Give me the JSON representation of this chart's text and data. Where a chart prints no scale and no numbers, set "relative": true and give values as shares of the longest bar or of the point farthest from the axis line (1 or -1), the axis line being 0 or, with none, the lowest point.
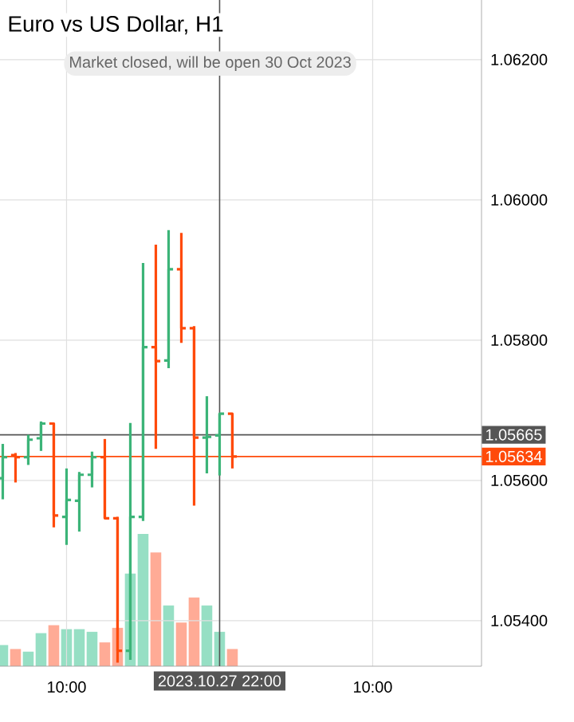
{
  "chart_data": [
    {
      "type": "candlestick",
      "title": "Euro vs US Dollar, H1",
      "annotations": [
        "Market closed, will be open 30 Oct 2023"
      ],
      "x": [
        "2023-10-27T05:00",
        "2023-10-27T06:00",
        "2023-10-27T07:00",
        "2023-10-27T08:00",
        "2023-10-27T09:00",
        "2023-10-27T10:00",
        "2023-10-27T11:00",
        "2023-10-27T12:00",
        "2023-10-27T13:00",
        "2023-10-27T14:00",
        "2023-10-27T15:00",
        "2023-10-27T16:00",
        "2023-10-27T17:00",
        "2023-10-27T18:00",
        "2023-10-27T19:00",
        "2023-10-27T20:00",
        "2023-10-27T21:00",
        "2023-10-27T22:00",
        "2023-10-27T23:00"
      ],
      "ohlc": [
        [
          1.05603,
          1.05652,
          1.05573,
          1.05633
        ],
        [
          1.05636,
          1.05639,
          1.05597,
          1.05633
        ],
        [
          1.05633,
          1.05665,
          1.05622,
          1.05658
        ],
        [
          1.0566,
          1.05684,
          1.05642,
          1.05681
        ],
        [
          1.05681,
          1.05682,
          1.05533,
          1.0555
        ],
        [
          1.05548,
          1.05617,
          1.05508,
          1.05572
        ],
        [
          1.05571,
          1.05612,
          1.05527,
          1.05608
        ],
        [
          1.05608,
          1.05641,
          1.0559,
          1.05633
        ],
        [
          1.05633,
          1.05659,
          1.05546,
          1.05546
        ],
        [
          1.05546,
          1.05548,
          1.0534,
          1.05357
        ],
        [
          1.05357,
          1.05682,
          1.05344,
          1.05548
        ],
        [
          1.05548,
          1.0591,
          1.05542,
          1.0579
        ],
        [
          1.0579,
          1.05936,
          1.05645,
          1.0577
        ],
        [
          1.05771,
          1.05957,
          1.0576,
          1.05901
        ],
        [
          1.05901,
          1.05953,
          1.05796,
          1.05817
        ],
        [
          1.05817,
          1.0582,
          1.05564,
          1.05661
        ],
        [
          1.05661,
          1.0572,
          1.0561,
          1.05662
        ],
        [
          1.05664,
          1.05695,
          1.05607,
          1.05695
        ],
        [
          1.05695,
          1.05695,
          1.05617,
          1.05634
        ]
      ],
      "colors": [
        "#3cb478",
        "#ff4a0a",
        "#3cb478",
        "#3cb478",
        "#ff4a0a",
        "#3cb478",
        "#3cb478",
        "#3cb478",
        "#ff4a0a",
        "#ff4a0a",
        "#3cb478",
        "#3cb478",
        "#ff4a0a",
        "#3cb478",
        "#ff4a0a",
        "#ff4a0a",
        "#3cb478",
        "#3cb478",
        "#ff4a0a"
      ],
      "xlim": [
        "2023-10-27T04:47",
        "2023-10-28T18:32"
      ],
      "ylim": [
        1.05335,
        1.06285
      ],
      "xticks": [
        {
          "value": "2023-10-27T10:00",
          "label": "10:00"
        },
        {
          "value": "2023-10-28T10:00",
          "label": "10:00"
        }
      ],
      "yticks": [
        {
          "value": 1.054,
          "label": "1.05400"
        },
        {
          "value": 1.056,
          "label": "1.05600"
        },
        {
          "value": 1.058,
          "label": "1.05800"
        },
        {
          "value": 1.06,
          "label": "1.06000"
        },
        {
          "value": 1.062,
          "label": "1.06200"
        }
      ],
      "ref_lines": [
        {
          "axis": "y",
          "value": 1.05665,
          "label": "1.05665",
          "color": "#555555"
        },
        {
          "axis": "y",
          "value": 1.05634,
          "label": "1.05634",
          "color": "#ff4a0a"
        },
        {
          "axis": "x",
          "value": "2023-10-27T22:00",
          "label": "2023.10.27 22:00",
          "color": "#555555"
        }
      ],
      "grid": true
    },
    {
      "type": "bar",
      "relative": true,
      "x": [
        "2023-10-27T05:00",
        "2023-10-27T06:00",
        "2023-10-27T07:00",
        "2023-10-27T08:00",
        "2023-10-27T09:00",
        "2023-10-27T10:00",
        "2023-10-27T11:00",
        "2023-10-27T12:00",
        "2023-10-27T13:00",
        "2023-10-27T14:00",
        "2023-10-27T15:00",
        "2023-10-27T16:00",
        "2023-10-27T17:00",
        "2023-10-27T18:00",
        "2023-10-27T19:00",
        "2023-10-27T20:00",
        "2023-10-27T21:00",
        "2023-10-27T22:00",
        "2023-10-27T23:00"
      ],
      "xlim": [
        "2023-10-27T04:47",
        "2023-10-28T18:32"
      ],
      "values": [
        0.16,
        0.13,
        0.11,
        0.25,
        0.31,
        0.28,
        0.28,
        0.26,
        0.18,
        0.29,
        0.7,
        1,
        0.86,
        0.46,
        0.33,
        0.52,
        0.46,
        0.26,
        0.13
      ],
      "colors": [
        "#96dfc4",
        "#ffab96",
        "#96dfc4",
        "#96dfc4",
        "#ffab96",
        "#96dfc4",
        "#96dfc4",
        "#96dfc4",
        "#ffab96",
        "#ffab96",
        "#96dfc4",
        "#96dfc4",
        "#ffab96",
        "#96dfc4",
        "#ffab96",
        "#ffab96",
        "#96dfc4",
        "#96dfc4",
        "#ffab96"
      ]
    }
  ]
}
